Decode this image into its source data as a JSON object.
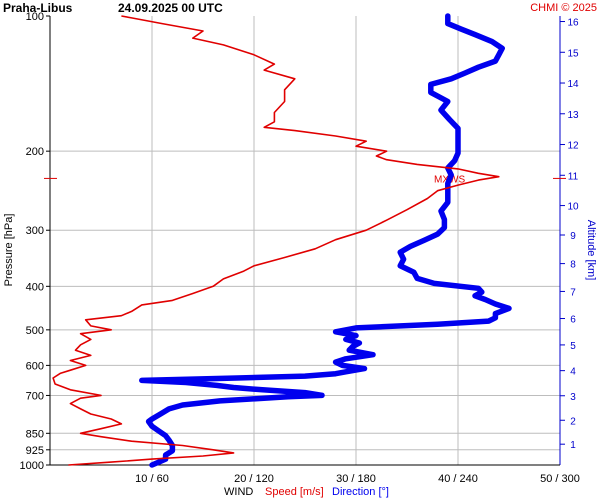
{
  "header": {
    "station": "Praha-Libus",
    "datetime": "24.09.2025 00 UTC",
    "credit": "CHMI © 2025"
  },
  "colors": {
    "speed": "#e00000",
    "direction": "#0000ee",
    "grid": "#bdbdbd",
    "axis": "#000000",
    "altitude": "#0000cc"
  },
  "chart_data": {
    "type": "line",
    "ylabel": "Pressure [hPa]",
    "y_scale": "log",
    "y_reversed": true,
    "ylim": [
      1000,
      100
    ],
    "pressure_ticks": [
      100,
      200,
      300,
      400,
      500,
      600,
      700,
      850,
      925,
      1000
    ],
    "xlabel_parts": {
      "wind": "WIND",
      "speed": "Speed [m/s]",
      "direction": "Direction [°]"
    },
    "speed_range": [
      0,
      50
    ],
    "direction_range": [
      0,
      300
    ],
    "x_ticks": [
      {
        "speed": 10,
        "direction": 60,
        "label": "10 / 60"
      },
      {
        "speed": 20,
        "direction": 120,
        "label": "20 / 120"
      },
      {
        "speed": 30,
        "direction": 180,
        "label": "30 / 180"
      },
      {
        "speed": 40,
        "direction": 240,
        "label": "40 / 240"
      },
      {
        "speed": 50,
        "direction": 300,
        "label": "50 / 300"
      }
    ],
    "right_axis": {
      "label": "Altitude [km]",
      "ticks": [
        "1",
        "2",
        "3",
        "4",
        "5",
        "6",
        "7",
        "8",
        "9",
        "10",
        "11",
        "12",
        "13",
        "14",
        "15",
        "16"
      ]
    },
    "annotation": {
      "text": "MXWS",
      "pressure": 230
    },
    "series": [
      {
        "name": "Speed [m/s]",
        "points": [
          [
            1000,
            1.8
          ],
          [
            985,
            6
          ],
          [
            970,
            10
          ],
          [
            955,
            15
          ],
          [
            940,
            18
          ],
          [
            925,
            16
          ],
          [
            905,
            13
          ],
          [
            885,
            8
          ],
          [
            865,
            5
          ],
          [
            850,
            3
          ],
          [
            830,
            5
          ],
          [
            810,
            7
          ],
          [
            790,
            6
          ],
          [
            770,
            4
          ],
          [
            750,
            3
          ],
          [
            730,
            2
          ],
          [
            710,
            3
          ],
          [
            700,
            5
          ],
          [
            680,
            2
          ],
          [
            660,
            0.5
          ],
          [
            640,
            0.3
          ],
          [
            625,
            1
          ],
          [
            615,
            2
          ],
          [
            600,
            3.5
          ],
          [
            585,
            2
          ],
          [
            570,
            4
          ],
          [
            555,
            2.5
          ],
          [
            540,
            3
          ],
          [
            525,
            4
          ],
          [
            510,
            3
          ],
          [
            500,
            6
          ],
          [
            490,
            4
          ],
          [
            475,
            3.5
          ],
          [
            465,
            7
          ],
          [
            455,
            8
          ],
          [
            440,
            9
          ],
          [
            430,
            12
          ],
          [
            415,
            14
          ],
          [
            400,
            16
          ],
          [
            385,
            17
          ],
          [
            370,
            19
          ],
          [
            360,
            20
          ],
          [
            345,
            23
          ],
          [
            330,
            26
          ],
          [
            315,
            28
          ],
          [
            300,
            31
          ],
          [
            285,
            33
          ],
          [
            270,
            35
          ],
          [
            255,
            37
          ],
          [
            245,
            38
          ],
          [
            238,
            40
          ],
          [
            232,
            42
          ],
          [
            228,
            44
          ],
          [
            224,
            42
          ],
          [
            219,
            40
          ],
          [
            214,
            36
          ],
          [
            209,
            33
          ],
          [
            205,
            32
          ],
          [
            200,
            33
          ],
          [
            195,
            30
          ],
          [
            190,
            31
          ],
          [
            185,
            28
          ],
          [
            180,
            24
          ],
          [
            177,
            21
          ],
          [
            172,
            22
          ],
          [
            164,
            22
          ],
          [
            155,
            23
          ],
          [
            146,
            23
          ],
          [
            138,
            24
          ],
          [
            132,
            21
          ],
          [
            128,
            22
          ],
          [
            122,
            20
          ],
          [
            116,
            17
          ],
          [
            112,
            14
          ],
          [
            108,
            15
          ],
          [
            104,
            11
          ],
          [
            101,
            8
          ],
          [
            100,
            7
          ]
        ]
      },
      {
        "name": "Direction [°]",
        "points": [
          [
            1000,
            60
          ],
          [
            985,
            64
          ],
          [
            970,
            68
          ],
          [
            950,
            68
          ],
          [
            930,
            72
          ],
          [
            905,
            72
          ],
          [
            880,
            70
          ],
          [
            860,
            68
          ],
          [
            840,
            64
          ],
          [
            820,
            60
          ],
          [
            800,
            58
          ],
          [
            790,
            60
          ],
          [
            770,
            65
          ],
          [
            750,
            70
          ],
          [
            735,
            78
          ],
          [
            720,
            100
          ],
          [
            705,
            140
          ],
          [
            700,
            160
          ],
          [
            690,
            150
          ],
          [
            680,
            125
          ],
          [
            672,
            108
          ],
          [
            665,
            98
          ],
          [
            655,
            80
          ],
          [
            648,
            54
          ],
          [
            640,
            110
          ],
          [
            634,
            150
          ],
          [
            626,
            168
          ],
          [
            620,
            174
          ],
          [
            610,
            185
          ],
          [
            600,
            172
          ],
          [
            590,
            168
          ],
          [
            580,
            174
          ],
          [
            568,
            190
          ],
          [
            555,
            176
          ],
          [
            545,
            178
          ],
          [
            535,
            182
          ],
          [
            525,
            174
          ],
          [
            515,
            180
          ],
          [
            505,
            168
          ],
          [
            495,
            180
          ],
          [
            486,
            228
          ],
          [
            478,
            258
          ],
          [
            470,
            262
          ],
          [
            460,
            262
          ],
          [
            448,
            270
          ],
          [
            438,
            262
          ],
          [
            428,
            256
          ],
          [
            420,
            250
          ],
          [
            412,
            254
          ],
          [
            404,
            252
          ],
          [
            394,
            226
          ],
          [
            384,
            216
          ],
          [
            372,
            214
          ],
          [
            360,
            206
          ],
          [
            348,
            208
          ],
          [
            336,
            206
          ],
          [
            326,
            212
          ],
          [
            316,
            220
          ],
          [
            306,
            228
          ],
          [
            296,
            232
          ],
          [
            284,
            232
          ],
          [
            272,
            230
          ],
          [
            260,
            234
          ],
          [
            248,
            234
          ],
          [
            236,
            234
          ],
          [
            226,
            236
          ],
          [
            218,
            234
          ],
          [
            210,
            238
          ],
          [
            202,
            240
          ],
          [
            194,
            240
          ],
          [
            186,
            240
          ],
          [
            178,
            240
          ],
          [
            170,
            235
          ],
          [
            162,
            230
          ],
          [
            155,
            234
          ],
          [
            148,
            224
          ],
          [
            142,
            224
          ],
          [
            138,
            236
          ],
          [
            134,
            244
          ],
          [
            130,
            252
          ],
          [
            126,
            262
          ],
          [
            122,
            264
          ],
          [
            118,
            266
          ],
          [
            114,
            260
          ],
          [
            110,
            250
          ],
          [
            107,
            242
          ],
          [
            104,
            234
          ],
          [
            101,
            234
          ],
          [
            100,
            234
          ]
        ]
      }
    ]
  }
}
